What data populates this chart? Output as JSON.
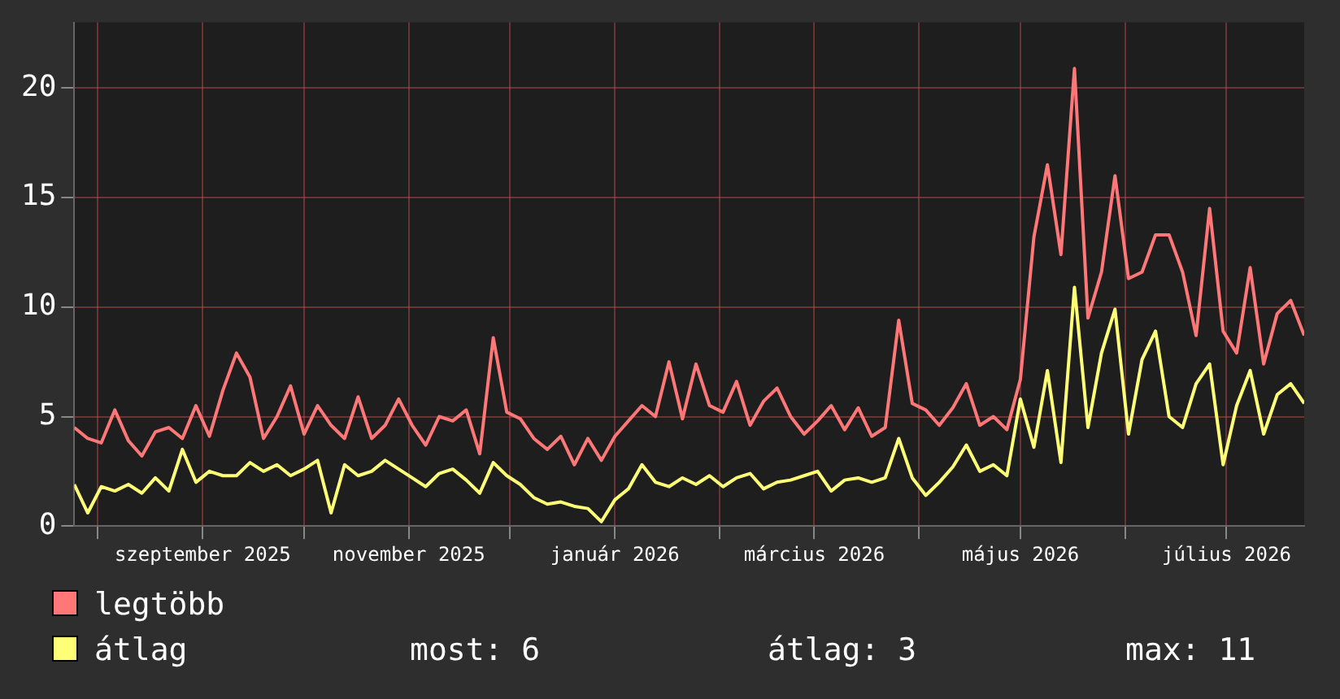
{
  "chart_data": {
    "type": "line",
    "x": [
      "2025-07-25",
      "2025-07-29",
      "2025-08-02",
      "2025-08-06",
      "2025-08-10",
      "2025-08-14",
      "2025-08-18",
      "2025-08-22",
      "2025-08-26",
      "2025-08-30",
      "2025-09-03",
      "2025-09-07",
      "2025-09-11",
      "2025-09-15",
      "2025-09-19",
      "2025-09-23",
      "2025-09-27",
      "2025-10-01",
      "2025-10-05",
      "2025-10-09",
      "2025-10-13",
      "2025-10-17",
      "2025-10-21",
      "2025-10-25",
      "2025-10-29",
      "2025-11-02",
      "2025-11-06",
      "2025-11-10",
      "2025-11-14",
      "2025-11-18",
      "2025-11-22",
      "2025-11-26",
      "2025-11-30",
      "2025-12-04",
      "2025-12-08",
      "2025-12-12",
      "2025-12-16",
      "2025-12-20",
      "2025-12-24",
      "2025-12-28",
      "2026-01-01",
      "2026-01-05",
      "2026-01-09",
      "2026-01-13",
      "2026-01-17",
      "2026-01-21",
      "2026-01-25",
      "2026-01-29",
      "2026-02-02",
      "2026-02-06",
      "2026-02-10",
      "2026-02-14",
      "2026-02-18",
      "2026-02-22",
      "2026-02-26",
      "2026-03-02",
      "2026-03-06",
      "2026-03-10",
      "2026-03-14",
      "2026-03-18",
      "2026-03-22",
      "2026-03-26",
      "2026-03-30",
      "2026-04-03",
      "2026-04-07",
      "2026-04-11",
      "2026-04-15",
      "2026-04-19",
      "2026-04-23",
      "2026-04-27",
      "2026-05-01",
      "2026-05-05",
      "2026-05-09",
      "2026-05-13",
      "2026-05-17",
      "2026-05-21",
      "2026-05-25",
      "2026-05-29",
      "2026-06-02",
      "2026-06-06",
      "2026-06-10",
      "2026-06-14",
      "2026-06-18",
      "2026-06-22",
      "2026-06-26",
      "2026-06-30",
      "2026-07-04",
      "2026-07-08",
      "2026-07-12",
      "2026-07-16",
      "2026-07-20",
      "2026-07-24"
    ],
    "series": [
      {
        "name": "legtöbb",
        "color": "#ff7777",
        "values": [
          4.5,
          4.0,
          3.8,
          5.3,
          3.9,
          3.2,
          4.3,
          4.5,
          4.0,
          5.5,
          4.1,
          6.2,
          7.9,
          6.8,
          4.0,
          5.0,
          6.4,
          4.2,
          5.5,
          4.6,
          4.0,
          5.9,
          4.0,
          4.6,
          5.8,
          4.6,
          3.7,
          5.0,
          4.8,
          5.3,
          3.3,
          8.6,
          5.2,
          4.9,
          4.0,
          3.5,
          4.1,
          2.8,
          4.0,
          3.0,
          4.1,
          4.8,
          5.5,
          5.0,
          7.5,
          4.9,
          7.4,
          5.5,
          5.2,
          6.6,
          4.6,
          5.7,
          6.3,
          5.0,
          4.2,
          4.8,
          5.5,
          4.4,
          5.4,
          4.1,
          4.5,
          9.4,
          5.6,
          5.3,
          4.6,
          5.4,
          6.5,
          4.6,
          5.0,
          4.4,
          6.7,
          13.2,
          16.5,
          12.4,
          20.9,
          9.5,
          11.6,
          16.0,
          11.3,
          11.6,
          13.3,
          13.3,
          11.6,
          8.7,
          14.5,
          8.9,
          7.9,
          11.8,
          7.4,
          9.7,
          10.3,
          8.7
        ]
      },
      {
        "name": "átlag",
        "color": "#ffff77",
        "values": [
          1.9,
          0.6,
          1.8,
          1.6,
          1.9,
          1.5,
          2.2,
          1.6,
          3.5,
          2.0,
          2.5,
          2.3,
          2.3,
          2.9,
          2.5,
          2.8,
          2.3,
          2.6,
          3.0,
          0.6,
          2.8,
          2.3,
          2.5,
          3.0,
          2.6,
          2.2,
          1.8,
          2.4,
          2.6,
          2.1,
          1.5,
          2.9,
          2.3,
          1.9,
          1.3,
          1.0,
          1.1,
          0.9,
          0.8,
          0.2,
          1.2,
          1.7,
          2.8,
          2.0,
          1.8,
          2.2,
          1.9,
          2.3,
          1.8,
          2.2,
          2.4,
          1.7,
          2.0,
          2.1,
          2.3,
          2.5,
          1.6,
          2.1,
          2.2,
          2.0,
          2.2,
          4.0,
          2.2,
          1.4,
          2.0,
          2.7,
          3.7,
          2.5,
          2.8,
          2.3,
          5.8,
          3.6,
          7.1,
          2.9,
          10.9,
          4.5,
          7.9,
          9.9,
          4.2,
          7.6,
          8.9,
          5.0,
          4.5,
          6.5,
          7.4,
          2.8,
          5.5,
          7.1,
          4.2,
          6.0,
          6.5,
          5.6
        ]
      }
    ],
    "xlim": [
      "2025-07-25",
      "2026-07-24"
    ],
    "xticks": [
      {
        "value": "2025-08-01",
        "label": null
      },
      {
        "value": "2025-09-01",
        "label": "szeptember 2025"
      },
      {
        "value": "2025-10-01",
        "label": null
      },
      {
        "value": "2025-11-01",
        "label": "november 2025"
      },
      {
        "value": "2025-12-01",
        "label": null
      },
      {
        "value": "2026-01-01",
        "label": "január 2026"
      },
      {
        "value": "2026-02-01",
        "label": null
      },
      {
        "value": "2026-03-01",
        "label": "március 2026"
      },
      {
        "value": "2026-04-01",
        "label": null
      },
      {
        "value": "2026-05-01",
        "label": "május 2026"
      },
      {
        "value": "2026-06-01",
        "label": null
      },
      {
        "value": "2026-07-01",
        "label": "július 2026"
      }
    ],
    "ylim": [
      0,
      23
    ],
    "yticks": [
      0,
      5,
      10,
      15,
      20
    ],
    "grid": true,
    "legend": "bottom",
    "marker": "none",
    "line_style": "solid",
    "annotations": [
      "most: 6",
      "átlag: 3",
      "max: 11"
    ]
  }
}
